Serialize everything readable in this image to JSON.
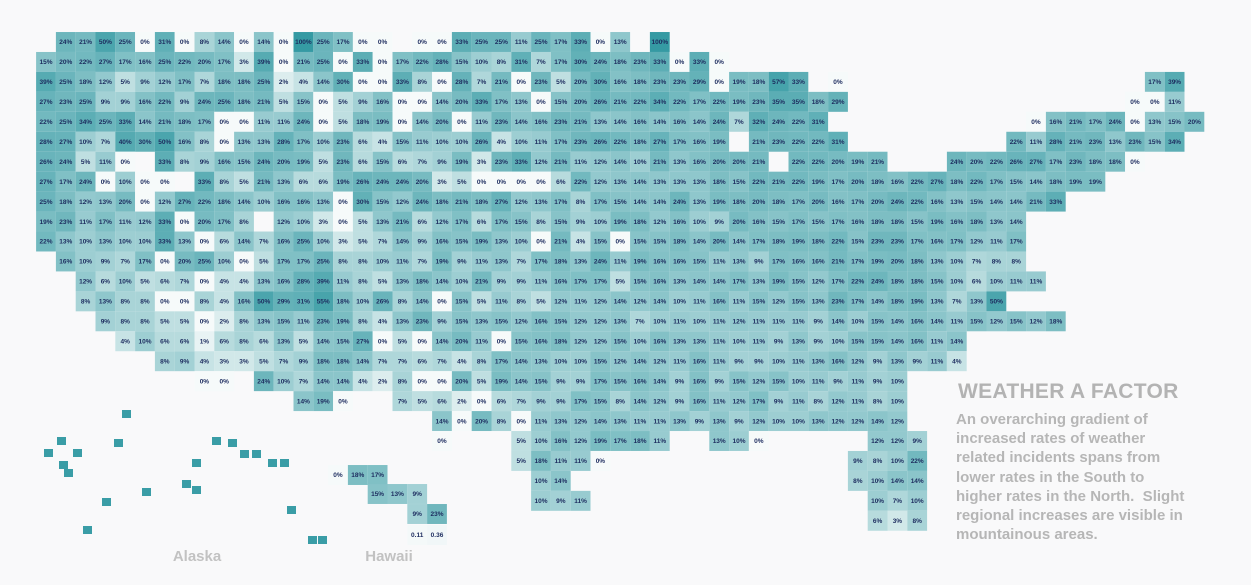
{
  "map": {
    "rows": [
      [
        null,
        "24%",
        "21%",
        "50%",
        "25%",
        "0%",
        "31%",
        "0%",
        "8%",
        "14%",
        "0%",
        "14%",
        "0%",
        "100%",
        "25%",
        "17%",
        "0%",
        "0%",
        null,
        "0%",
        "0%",
        "33%",
        "25%",
        "25%",
        "11%",
        "25%",
        "17%",
        "33%",
        "0%",
        "13%",
        null,
        "100%"
      ],
      [
        "15%",
        "20%",
        "22%",
        "27%",
        "17%",
        "16%",
        "25%",
        "22%",
        "20%",
        "17%",
        "3%",
        "39%",
        "0%",
        "21%",
        "25%",
        "0%",
        "33%",
        "0%",
        "17%",
        "22%",
        "28%",
        "15%",
        "10%",
        "8%",
        "31%",
        "7%",
        "17%",
        "30%",
        "24%",
        "18%",
        "23%",
        "33%",
        "0%",
        "33%",
        "0%"
      ],
      [
        "39%",
        "25%",
        "18%",
        "12%",
        "5%",
        "9%",
        "12%",
        "17%",
        "7%",
        "18%",
        "18%",
        "25%",
        "2%",
        "4%",
        "14%",
        "30%",
        "0%",
        "0%",
        "33%",
        "8%",
        "0%",
        "28%",
        "7%",
        "21%",
        "0%",
        "23%",
        "5%",
        "20%",
        "30%",
        "16%",
        "18%",
        "23%",
        "23%",
        "29%",
        "0%",
        "19%",
        "18%",
        "57%",
        "33%",
        null,
        "0%",
        null,
        null,
        null,
        null,
        null,
        null,
        null,
        null,
        null,
        null,
        null,
        null,
        null,
        null,
        null,
        "17%",
        "39%"
      ],
      [
        "27%",
        "23%",
        "25%",
        "9%",
        "9%",
        "16%",
        "22%",
        "9%",
        "24%",
        "25%",
        "18%",
        "21%",
        "5%",
        "15%",
        "0%",
        "5%",
        "9%",
        "16%",
        "0%",
        "0%",
        "14%",
        "20%",
        "33%",
        "17%",
        "13%",
        "0%",
        "15%",
        "20%",
        "26%",
        "21%",
        "22%",
        "34%",
        "22%",
        "17%",
        "22%",
        "19%",
        "23%",
        "35%",
        "35%",
        "18%",
        "29%",
        null,
        null,
        null,
        null,
        null,
        null,
        null,
        null,
        null,
        null,
        null,
        null,
        null,
        null,
        "0%",
        "0%",
        "11%"
      ],
      [
        "22%",
        "25%",
        "34%",
        "25%",
        "33%",
        "14%",
        "21%",
        "18%",
        "17%",
        "0%",
        "0%",
        "11%",
        "11%",
        "24%",
        "0%",
        "5%",
        "18%",
        "19%",
        "0%",
        "14%",
        "20%",
        "0%",
        "11%",
        "23%",
        "14%",
        "16%",
        "23%",
        "21%",
        "13%",
        "14%",
        "16%",
        "14%",
        "16%",
        "14%",
        "24%",
        "7%",
        "32%",
        "24%",
        "22%",
        "31%",
        null,
        null,
        null,
        null,
        null,
        null,
        null,
        null,
        null,
        null,
        "0%",
        "16%",
        "21%",
        "17%",
        "24%",
        "0%",
        "13%",
        "15%",
        "20%"
      ],
      [
        "28%",
        "27%",
        "10%",
        "7%",
        "40%",
        "30%",
        "50%",
        "16%",
        "8%",
        "0%",
        "13%",
        "13%",
        "28%",
        "17%",
        "10%",
        "23%",
        "6%",
        "4%",
        "15%",
        "11%",
        "10%",
        "10%",
        "26%",
        "4%",
        "10%",
        "11%",
        "17%",
        "23%",
        "26%",
        "22%",
        "18%",
        "27%",
        "17%",
        "16%",
        "19%",
        null,
        "21%",
        "23%",
        "22%",
        "22%",
        "31%",
        null,
        null,
        null,
        null,
        null,
        null,
        null,
        null,
        "22%",
        "11%",
        "28%",
        "21%",
        "23%",
        "13%",
        "23%",
        "15%",
        "34%"
      ],
      [
        "26%",
        "24%",
        "5%",
        "11%",
        "0%",
        null,
        "33%",
        "8%",
        "9%",
        "16%",
        "15%",
        "24%",
        "20%",
        "19%",
        "5%",
        "23%",
        "6%",
        "15%",
        "6%",
        "7%",
        "9%",
        "19%",
        "3%",
        "23%",
        "33%",
        "12%",
        "21%",
        "11%",
        "12%",
        "14%",
        "10%",
        "21%",
        "13%",
        "16%",
        "20%",
        "20%",
        "21%",
        null,
        "22%",
        "22%",
        "20%",
        "19%",
        "21%",
        null,
        null,
        null,
        "24%",
        "20%",
        "22%",
        "26%",
        "27%",
        "17%",
        "23%",
        "18%",
        "18%",
        "0%"
      ],
      [
        "27%",
        "17%",
        "24%",
        "0%",
        "10%",
        "0%",
        "0%",
        null,
        "33%",
        "8%",
        "5%",
        "21%",
        "13%",
        "6%",
        "6%",
        "19%",
        "26%",
        "24%",
        "24%",
        "20%",
        "3%",
        "5%",
        "0%",
        "0%",
        "0%",
        "0%",
        "6%",
        "22%",
        "12%",
        "13%",
        "14%",
        "13%",
        "13%",
        "13%",
        "18%",
        "15%",
        "22%",
        "21%",
        "22%",
        "19%",
        "17%",
        "20%",
        "18%",
        "16%",
        "22%",
        "27%",
        "18%",
        "22%",
        "17%",
        "15%",
        "14%",
        "18%",
        "19%",
        "19%"
      ],
      [
        "25%",
        "18%",
        "12%",
        "13%",
        "20%",
        "0%",
        "12%",
        "27%",
        "22%",
        "18%",
        "14%",
        "10%",
        "16%",
        "16%",
        "13%",
        "0%",
        "30%",
        "15%",
        "12%",
        "24%",
        "18%",
        "21%",
        "18%",
        "27%",
        "12%",
        "13%",
        "17%",
        "8%",
        "17%",
        "15%",
        "14%",
        "14%",
        "24%",
        "13%",
        "19%",
        "18%",
        "20%",
        "18%",
        "17%",
        "20%",
        "16%",
        "17%",
        "20%",
        "24%",
        "22%",
        "16%",
        "13%",
        "15%",
        "14%",
        "14%",
        "21%",
        "33%"
      ],
      [
        "19%",
        "23%",
        "11%",
        "17%",
        "11%",
        "12%",
        "33%",
        "0%",
        "20%",
        "17%",
        "8%",
        null,
        "12%",
        "10%",
        "3%",
        "0%",
        "5%",
        "13%",
        "21%",
        "6%",
        "12%",
        "17%",
        "6%",
        "17%",
        "15%",
        "8%",
        "15%",
        "9%",
        "10%",
        "19%",
        "18%",
        "12%",
        "16%",
        "10%",
        "9%",
        "20%",
        "16%",
        "15%",
        "17%",
        "15%",
        "17%",
        "16%",
        "18%",
        "18%",
        "15%",
        "19%",
        "16%",
        "18%",
        "13%",
        "14%"
      ],
      [
        "22%",
        "13%",
        "10%",
        "13%",
        "10%",
        "10%",
        "33%",
        "13%",
        "0%",
        "6%",
        "14%",
        "7%",
        "16%",
        "25%",
        "10%",
        "3%",
        "5%",
        "7%",
        "14%",
        "9%",
        "16%",
        "15%",
        "19%",
        "13%",
        "10%",
        "0%",
        "21%",
        "4%",
        "15%",
        "0%",
        "15%",
        "15%",
        "18%",
        "14%",
        "20%",
        "14%",
        "17%",
        "18%",
        "19%",
        "18%",
        "22%",
        "15%",
        "23%",
        "23%",
        "17%",
        "16%",
        "17%",
        "12%",
        "11%",
        "17%"
      ],
      [
        null,
        "16%",
        "10%",
        "9%",
        "7%",
        "17%",
        "0%",
        "20%",
        "25%",
        "10%",
        "0%",
        "5%",
        "17%",
        "17%",
        "25%",
        "8%",
        "8%",
        "10%",
        "11%",
        "7%",
        "19%",
        "9%",
        "11%",
        "13%",
        "7%",
        "17%",
        "18%",
        "13%",
        "24%",
        "11%",
        "19%",
        "16%",
        "16%",
        "15%",
        "11%",
        "13%",
        "9%",
        "17%",
        "16%",
        "16%",
        "21%",
        "17%",
        "19%",
        "20%",
        "18%",
        "13%",
        "10%",
        "7%",
        "8%",
        "8%"
      ],
      [
        null,
        null,
        "12%",
        "6%",
        "10%",
        "5%",
        "6%",
        "7%",
        "0%",
        "4%",
        "4%",
        "13%",
        "16%",
        "28%",
        "39%",
        "11%",
        "8%",
        "5%",
        "13%",
        "18%",
        "14%",
        "10%",
        "21%",
        "9%",
        "9%",
        "11%",
        "16%",
        "17%",
        "17%",
        "5%",
        "15%",
        "16%",
        "13%",
        "14%",
        "14%",
        "17%",
        "13%",
        "19%",
        "15%",
        "12%",
        "17%",
        "22%",
        "24%",
        "18%",
        "18%",
        "15%",
        "10%",
        "6%",
        "10%",
        "11%",
        "11%"
      ],
      [
        null,
        null,
        "8%",
        "13%",
        "8%",
        "8%",
        "0%",
        "0%",
        "8%",
        "4%",
        "16%",
        "50%",
        "29%",
        "31%",
        "55%",
        "18%",
        "10%",
        "26%",
        "8%",
        "14%",
        "0%",
        "15%",
        "5%",
        "11%",
        "8%",
        "5%",
        "12%",
        "11%",
        "12%",
        "14%",
        "12%",
        "14%",
        "10%",
        "11%",
        "16%",
        "11%",
        "15%",
        "12%",
        "15%",
        "13%",
        "23%",
        "17%",
        "14%",
        "18%",
        "19%",
        "13%",
        "7%",
        "13%",
        "50%"
      ],
      [
        null,
        null,
        null,
        "9%",
        "8%",
        "8%",
        "5%",
        "5%",
        "0%",
        "2%",
        "8%",
        "13%",
        "15%",
        "11%",
        "23%",
        "19%",
        "8%",
        "4%",
        "13%",
        "23%",
        "9%",
        "15%",
        "13%",
        "15%",
        "12%",
        "16%",
        "15%",
        "12%",
        "12%",
        "13%",
        "7%",
        "10%",
        "11%",
        "10%",
        "11%",
        "12%",
        "11%",
        "11%",
        "11%",
        "9%",
        "14%",
        "10%",
        "15%",
        "14%",
        "16%",
        "14%",
        "11%",
        "15%",
        "12%",
        "15%",
        "12%",
        "18%"
      ],
      [
        null,
        null,
        null,
        null,
        "4%",
        "10%",
        "6%",
        "6%",
        "1%",
        "6%",
        "8%",
        "6%",
        "13%",
        "5%",
        "14%",
        "15%",
        "27%",
        "0%",
        "5%",
        "0%",
        "14%",
        "20%",
        "11%",
        "0%",
        "15%",
        "16%",
        "18%",
        "12%",
        "12%",
        "15%",
        "10%",
        "16%",
        "13%",
        "13%",
        "11%",
        "10%",
        "11%",
        "9%",
        "13%",
        "9%",
        "10%",
        "15%",
        "15%",
        "14%",
        "16%",
        "11%",
        "14%"
      ],
      [
        null,
        null,
        null,
        null,
        null,
        null,
        "8%",
        "9%",
        "4%",
        "3%",
        "3%",
        "5%",
        "7%",
        "9%",
        "18%",
        "18%",
        "14%",
        "7%",
        "7%",
        "6%",
        "7%",
        "4%",
        "8%",
        "17%",
        "14%",
        "13%",
        "10%",
        "10%",
        "15%",
        "12%",
        "14%",
        "12%",
        "11%",
        "16%",
        "11%",
        "9%",
        "9%",
        "10%",
        "11%",
        "13%",
        "16%",
        "12%",
        "9%",
        "13%",
        "9%",
        "11%",
        "4%"
      ],
      [
        null,
        null,
        null,
        null,
        null,
        null,
        null,
        null,
        "0%",
        "0%",
        null,
        "24%",
        "10%",
        "7%",
        "14%",
        "14%",
        "4%",
        "2%",
        "8%",
        "0%",
        "0%",
        "20%",
        "5%",
        "19%",
        "14%",
        "15%",
        "9%",
        "9%",
        "17%",
        "15%",
        "16%",
        "14%",
        "9%",
        "16%",
        "9%",
        "15%",
        "12%",
        "15%",
        "10%",
        "11%",
        "9%",
        "11%",
        "9%",
        "10%"
      ],
      [
        null,
        null,
        null,
        null,
        null,
        null,
        null,
        null,
        null,
        null,
        null,
        null,
        null,
        "14%",
        "19%",
        "0%",
        null,
        null,
        "7%",
        "5%",
        "6%",
        "2%",
        "0%",
        "6%",
        "7%",
        "9%",
        "9%",
        "17%",
        "15%",
        "8%",
        "14%",
        "12%",
        "9%",
        "16%",
        "11%",
        "12%",
        "17%",
        "9%",
        "11%",
        "8%",
        "12%",
        "11%",
        "8%",
        "10%"
      ],
      [
        null,
        null,
        null,
        null,
        null,
        null,
        null,
        null,
        null,
        null,
        null,
        null,
        null,
        null,
        null,
        null,
        null,
        null,
        null,
        null,
        "14%",
        "0%",
        "20%",
        "8%",
        "0%",
        "11%",
        "13%",
        "12%",
        "14%",
        "13%",
        "11%",
        "11%",
        "13%",
        "9%",
        "13%",
        "9%",
        "12%",
        "10%",
        "10%",
        "13%",
        "12%",
        "12%",
        "14%",
        "12%"
      ],
      [
        null,
        null,
        null,
        null,
        null,
        null,
        null,
        null,
        null,
        null,
        null,
        null,
        null,
        null,
        null,
        null,
        null,
        null,
        null,
        null,
        "0%",
        null,
        null,
        null,
        "5%",
        "10%",
        "16%",
        "12%",
        "19%",
        "17%",
        "18%",
        "11%",
        null,
        null,
        "13%",
        "10%",
        "0%",
        null,
        null,
        null,
        null,
        null,
        "12%",
        "12%",
        "9%"
      ],
      [
        null,
        null,
        null,
        null,
        null,
        null,
        null,
        null,
        null,
        null,
        null,
        null,
        null,
        null,
        null,
        null,
        null,
        null,
        null,
        null,
        null,
        null,
        null,
        null,
        "5%",
        "18%",
        "11%",
        "11%",
        "0%",
        null,
        null,
        null,
        null,
        null,
        null,
        null,
        null,
        null,
        null,
        null,
        null,
        "9%",
        "8%",
        "10%",
        "22%"
      ],
      [
        null,
        null,
        null,
        null,
        null,
        null,
        null,
        null,
        null,
        null,
        null,
        null,
        null,
        null,
        null,
        null,
        null,
        null,
        null,
        null,
        null,
        null,
        null,
        null,
        null,
        "10%",
        "14%",
        null,
        null,
        null,
        null,
        null,
        null,
        null,
        null,
        null,
        null,
        null,
        null,
        null,
        null,
        "8%",
        "10%",
        "14%",
        "14%"
      ],
      [
        null,
        null,
        null,
        null,
        null,
        null,
        null,
        null,
        null,
        null,
        null,
        null,
        null,
        null,
        null,
        null,
        null,
        null,
        null,
        null,
        null,
        null,
        null,
        null,
        null,
        "10%",
        "9%",
        "11%",
        null,
        null,
        null,
        null,
        null,
        null,
        null,
        null,
        null,
        null,
        null,
        null,
        null,
        null,
        "10%",
        "7%",
        "10%"
      ],
      [
        null,
        null,
        null,
        null,
        null,
        null,
        null,
        null,
        null,
        null,
        null,
        null,
        null,
        null,
        null,
        null,
        null,
        null,
        null,
        null,
        null,
        null,
        null,
        null,
        null,
        null,
        null,
        null,
        null,
        null,
        null,
        null,
        null,
        null,
        null,
        null,
        null,
        null,
        null,
        null,
        null,
        null,
        "6%",
        "3%",
        "8%"
      ]
    ],
    "hawaii": {
      "label": "Hawaii",
      "rows": [
        [
          "0%",
          "18%",
          "17%"
        ],
        [
          null,
          null,
          "15%",
          "13%",
          "9%"
        ],
        [
          null,
          null,
          null,
          null,
          "9%",
          "23%"
        ],
        [
          null,
          null,
          null,
          null,
          "0.11",
          "0.36"
        ]
      ]
    },
    "alaska": {
      "label": "Alaska"
    }
  },
  "note": {
    "title": "WEATHER A FACTOR",
    "lines": [
      "An overarching gradient of",
      "increased rates of weather",
      "related incidents spans from",
      "lower rates in the South to",
      "higher rates in the North.  Slight",
      "regional increases are visible in",
      "mountainous areas."
    ]
  }
}
